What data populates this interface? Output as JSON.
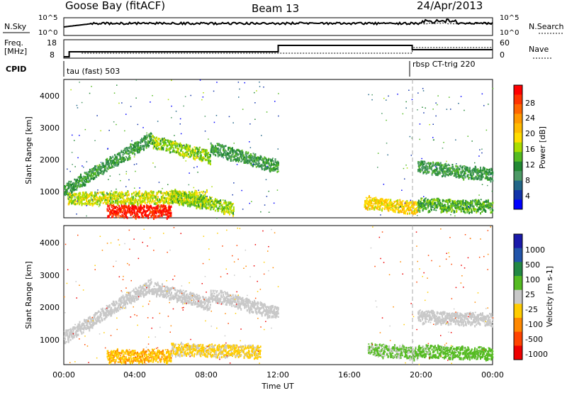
{
  "header": {
    "station": "Goose Bay (fitACF)",
    "beam": "Beam 13",
    "date": "24/Apr/2013"
  },
  "noise_panel": {
    "left_label": "N.Sky",
    "right_label": "N.Search",
    "left_ticks": [
      "10^5",
      "10^0"
    ],
    "right_ticks": [
      "10^5",
      "10^0"
    ]
  },
  "freq_panel": {
    "left_label_1": "Freq.",
    "left_label_2": "[MHz]",
    "left_ticks": [
      "18",
      "8"
    ],
    "right_label": "Nave",
    "right_ticks": [
      "60",
      "0"
    ]
  },
  "cpid": {
    "label": "CPID",
    "mode_1": "tau (fast) 503",
    "mode_2": "rbsp CT-trig 220"
  },
  "time_axis": {
    "label": "Time UT",
    "ticks": [
      "00:00",
      "04:00",
      "08:00",
      "12:00",
      "16:00",
      "20:00",
      "00:00"
    ]
  },
  "power_panel": {
    "ylabel": "Slant Range [km]",
    "yticks": [
      "4000",
      "3000",
      "2000",
      "1000"
    ],
    "colorbar_title": "Power [dB]",
    "colorbar_ticks": [
      "28",
      "24",
      "20",
      "16",
      "12",
      "8",
      "4"
    ],
    "colorbar_colors": [
      "#ff0000",
      "#ff3300",
      "#ff6600",
      "#ff9900",
      "#ffbb00",
      "#ffdd00",
      "#aadd00",
      "#55bb22",
      "#228833",
      "#4d9966",
      "#226688",
      "#1133aa",
      "#0000ff"
    ]
  },
  "velocity_panel": {
    "ylabel": "Slant Range [km]",
    "yticks": [
      "4000",
      "3000",
      "2000",
      "1000"
    ],
    "colorbar_title": "Velocity [m s-1]",
    "colorbar_ticks": [
      "1000",
      "500",
      "100",
      "25",
      "-25",
      "-100",
      "-500",
      "-1000"
    ],
    "colorbar_colors": [
      "#1a1aaa",
      "#2255aa",
      "#228844",
      "#55bb22",
      "#c8c8c8",
      "#ffcc00",
      "#ff8800",
      "#ff4400",
      "#ee0000"
    ]
  },
  "chart_data": [
    {
      "type": "heatmap",
      "title": "Power [dB]",
      "xlabel": "Time UT",
      "ylabel": "Slant Range [km]",
      "xlim": [
        0,
        24
      ],
      "ylim": [
        180,
        4500
      ],
      "clim": [
        0,
        30
      ],
      "features": [
        {
          "t0": 0.0,
          "t1": 4.9,
          "r0": 950,
          "r1": 2600,
          "v": 10
        },
        {
          "t0": 4.9,
          "t1": 8.2,
          "r0": 2500,
          "r1": 2000,
          "v": 14
        },
        {
          "t0": 8.2,
          "t1": 12.0,
          "r0": 2300,
          "r1": 1700,
          "v": 10
        },
        {
          "t0": 0.2,
          "t1": 8.0,
          "r0": 700,
          "r1": 780,
          "v": 16
        },
        {
          "t0": 2.4,
          "t1": 6.0,
          "r0": 320,
          "r1": 320,
          "v": 28
        },
        {
          "t0": 6.0,
          "t1": 9.5,
          "r0": 800,
          "r1": 400,
          "v": 14
        },
        {
          "t0": 16.8,
          "t1": 19.8,
          "r0": 600,
          "r1": 420,
          "v": 18
        },
        {
          "t0": 19.8,
          "t1": 24.0,
          "r0": 1700,
          "r1": 1450,
          "v": 10
        },
        {
          "t0": 19.8,
          "t1": 24.0,
          "r0": 520,
          "r1": 460,
          "v": 12
        }
      ]
    },
    {
      "type": "heatmap",
      "title": "Velocity [m s-1]",
      "xlabel": "Time UT",
      "ylabel": "Slant Range [km]",
      "xlim": [
        0,
        24
      ],
      "ylim": [
        180,
        4500
      ],
      "clim": [
        -1000,
        1000
      ],
      "features": [
        {
          "t0": 0.0,
          "t1": 4.9,
          "r0": 950,
          "r1": 2600,
          "v": 0
        },
        {
          "t0": 4.9,
          "t1": 8.2,
          "r0": 2500,
          "r1": 2000,
          "v": 0
        },
        {
          "t0": 8.2,
          "t1": 12.0,
          "r0": 2300,
          "r1": 1700,
          "v": 0
        },
        {
          "t0": 2.4,
          "t1": 6.0,
          "r0": 380,
          "r1": 380,
          "v": -300
        },
        {
          "t0": 6.0,
          "t1": 11.0,
          "r0": 600,
          "r1": 500,
          "v": -150
        },
        {
          "t0": 17.0,
          "t1": 19.8,
          "r0": 600,
          "r1": 450,
          "v": 150
        },
        {
          "t0": 19.8,
          "t1": 24.0,
          "r0": 1600,
          "r1": 1500,
          "v": 0
        },
        {
          "t0": 19.8,
          "t1": 24.0,
          "r0": 520,
          "r1": 460,
          "v": 200
        }
      ]
    }
  ]
}
